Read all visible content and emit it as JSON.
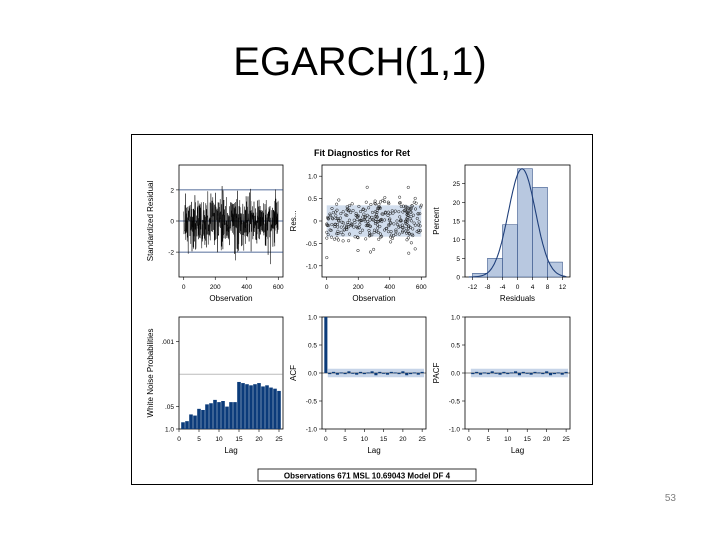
{
  "slide": {
    "title": "EGARCH(1,1)",
    "page_number": "53"
  },
  "chart_data": [
    {
      "type": "line",
      "panel": "standardized-residual",
      "title": "Fit Diagnostics for Ret",
      "xlabel": "Observation",
      "ylabel": "Standardized Residual",
      "xlim": [
        -30,
        630
      ],
      "ylim": [
        -3.6,
        3.6
      ],
      "xticks": [
        "0",
        "200",
        "400",
        "600"
      ],
      "yticks": [
        "-2",
        "0",
        "2"
      ],
      "reference_lines": [
        -2,
        0,
        2
      ],
      "n_obs": 671,
      "color": "#000000"
    },
    {
      "type": "scatter",
      "panel": "residual-vs-observation",
      "xlabel": "Observation",
      "ylabel": "Res...",
      "xlim": [
        -30,
        630
      ],
      "ylim": [
        -1.25,
        1.25
      ],
      "xticks": [
        "0",
        "200",
        "400",
        "600"
      ],
      "yticks": [
        "1.0",
        "0.5",
        "0",
        "-0.5",
        "-1.0"
      ],
      "band_color": "#c6d4e8",
      "point_color": "#1a1a1a"
    },
    {
      "type": "bar",
      "panel": "residual-histogram",
      "xlabel": "Residuals",
      "ylabel": "Percent",
      "categories": [
        "-12",
        "-8",
        "-4",
        "0",
        "4",
        "8",
        "12"
      ],
      "x": [
        -10,
        -6,
        -2,
        2,
        6,
        10
      ],
      "values": [
        1,
        5,
        14,
        29,
        24,
        4
      ],
      "xlim": [
        -14,
        14
      ],
      "ylim": [
        0,
        30
      ],
      "yticks": [
        "0",
        "5",
        "10",
        "15",
        "20",
        "25"
      ],
      "curve": "normal",
      "fill": "#b8c8e0",
      "curve_color": "#1f3f7a"
    },
    {
      "type": "bar",
      "panel": "white-noise-probabilities",
      "xlabel": "Lag",
      "ylabel": "White Noise Probabilities",
      "categories": [
        "1",
        "2",
        "3",
        "4",
        "5",
        "6",
        "7",
        "8",
        "9",
        "10",
        "11",
        "12",
        "13",
        "14",
        "15",
        "16",
        "17",
        "18",
        "19",
        "20",
        "21",
        "22",
        "23",
        "24",
        "25"
      ],
      "values": [
        0.06,
        0.07,
        0.13,
        0.12,
        0.18,
        0.17,
        0.22,
        0.23,
        0.26,
        0.24,
        0.25,
        0.2,
        0.24,
        0.24,
        0.42,
        0.41,
        0.4,
        0.39,
        0.4,
        0.41,
        0.38,
        0.39,
        0.37,
        0.36,
        0.34
      ],
      "xlim": [
        0,
        26
      ],
      "xticks": [
        "0",
        "5",
        "10",
        "15",
        "20",
        "25"
      ],
      "yticks": [
        ".001",
        ".05",
        "1.0"
      ],
      "reference_line": ".05",
      "color": "#0b3b7a"
    },
    {
      "type": "bar",
      "panel": "acf",
      "xlabel": "Lag",
      "ylabel": "ACF",
      "categories": [
        "0",
        "1",
        "2",
        "3",
        "4",
        "5",
        "6",
        "7",
        "8",
        "9",
        "10",
        "11",
        "12",
        "13",
        "14",
        "15",
        "16",
        "17",
        "18",
        "19",
        "20",
        "21",
        "22",
        "23",
        "24",
        "25"
      ],
      "values": [
        1.0,
        -0.02,
        0.02,
        -0.03,
        0.01,
        -0.02,
        0.03,
        -0.01,
        -0.03,
        0.02,
        -0.02,
        0.01,
        0.03,
        -0.04,
        0.02,
        -0.01,
        -0.03,
        0.02,
        0.01,
        -0.02,
        0.03,
        -0.04,
        -0.02,
        0.01,
        -0.03,
        0.02
      ],
      "xlim": [
        -1,
        26
      ],
      "ylim": [
        -1.0,
        1.0
      ],
      "xticks": [
        "0",
        "5",
        "10",
        "15",
        "20",
        "25"
      ],
      "yticks": [
        "1.0",
        "0.5",
        "0.0",
        "-0.5",
        "-1.0"
      ],
      "confidence_band": 0.076,
      "color": "#0b3b7a",
      "band_color": "#c6d4e8"
    },
    {
      "type": "bar",
      "panel": "pacf",
      "xlabel": "Lag",
      "ylabel": "PACF",
      "categories": [
        "1",
        "2",
        "3",
        "4",
        "5",
        "6",
        "7",
        "8",
        "9",
        "10",
        "11",
        "12",
        "13",
        "14",
        "15",
        "16",
        "17",
        "18",
        "19",
        "20",
        "21",
        "22",
        "23",
        "24",
        "25"
      ],
      "values": [
        -0.02,
        0.02,
        -0.03,
        0.01,
        -0.02,
        0.03,
        -0.01,
        -0.03,
        0.02,
        -0.02,
        0.01,
        0.03,
        -0.04,
        0.02,
        -0.01,
        -0.03,
        0.02,
        0.01,
        -0.02,
        0.03,
        -0.04,
        -0.02,
        0.01,
        -0.03,
        0.02
      ],
      "xlim": [
        -1,
        26
      ],
      "ylim": [
        -1.0,
        1.0
      ],
      "xticks": [
        "0",
        "5",
        "10",
        "15",
        "20",
        "25"
      ],
      "yticks": [
        "1.0",
        "0.5",
        "0.0",
        "-0.5",
        "-1.0"
      ],
      "confidence_band": 0.076,
      "color": "#0b3b7a",
      "band_color": "#c6d4e8"
    }
  ],
  "figure": {
    "title": "Fit Diagnostics for Ret",
    "footer": "Observations 671   MSL 10.69043   Model DF 4"
  }
}
